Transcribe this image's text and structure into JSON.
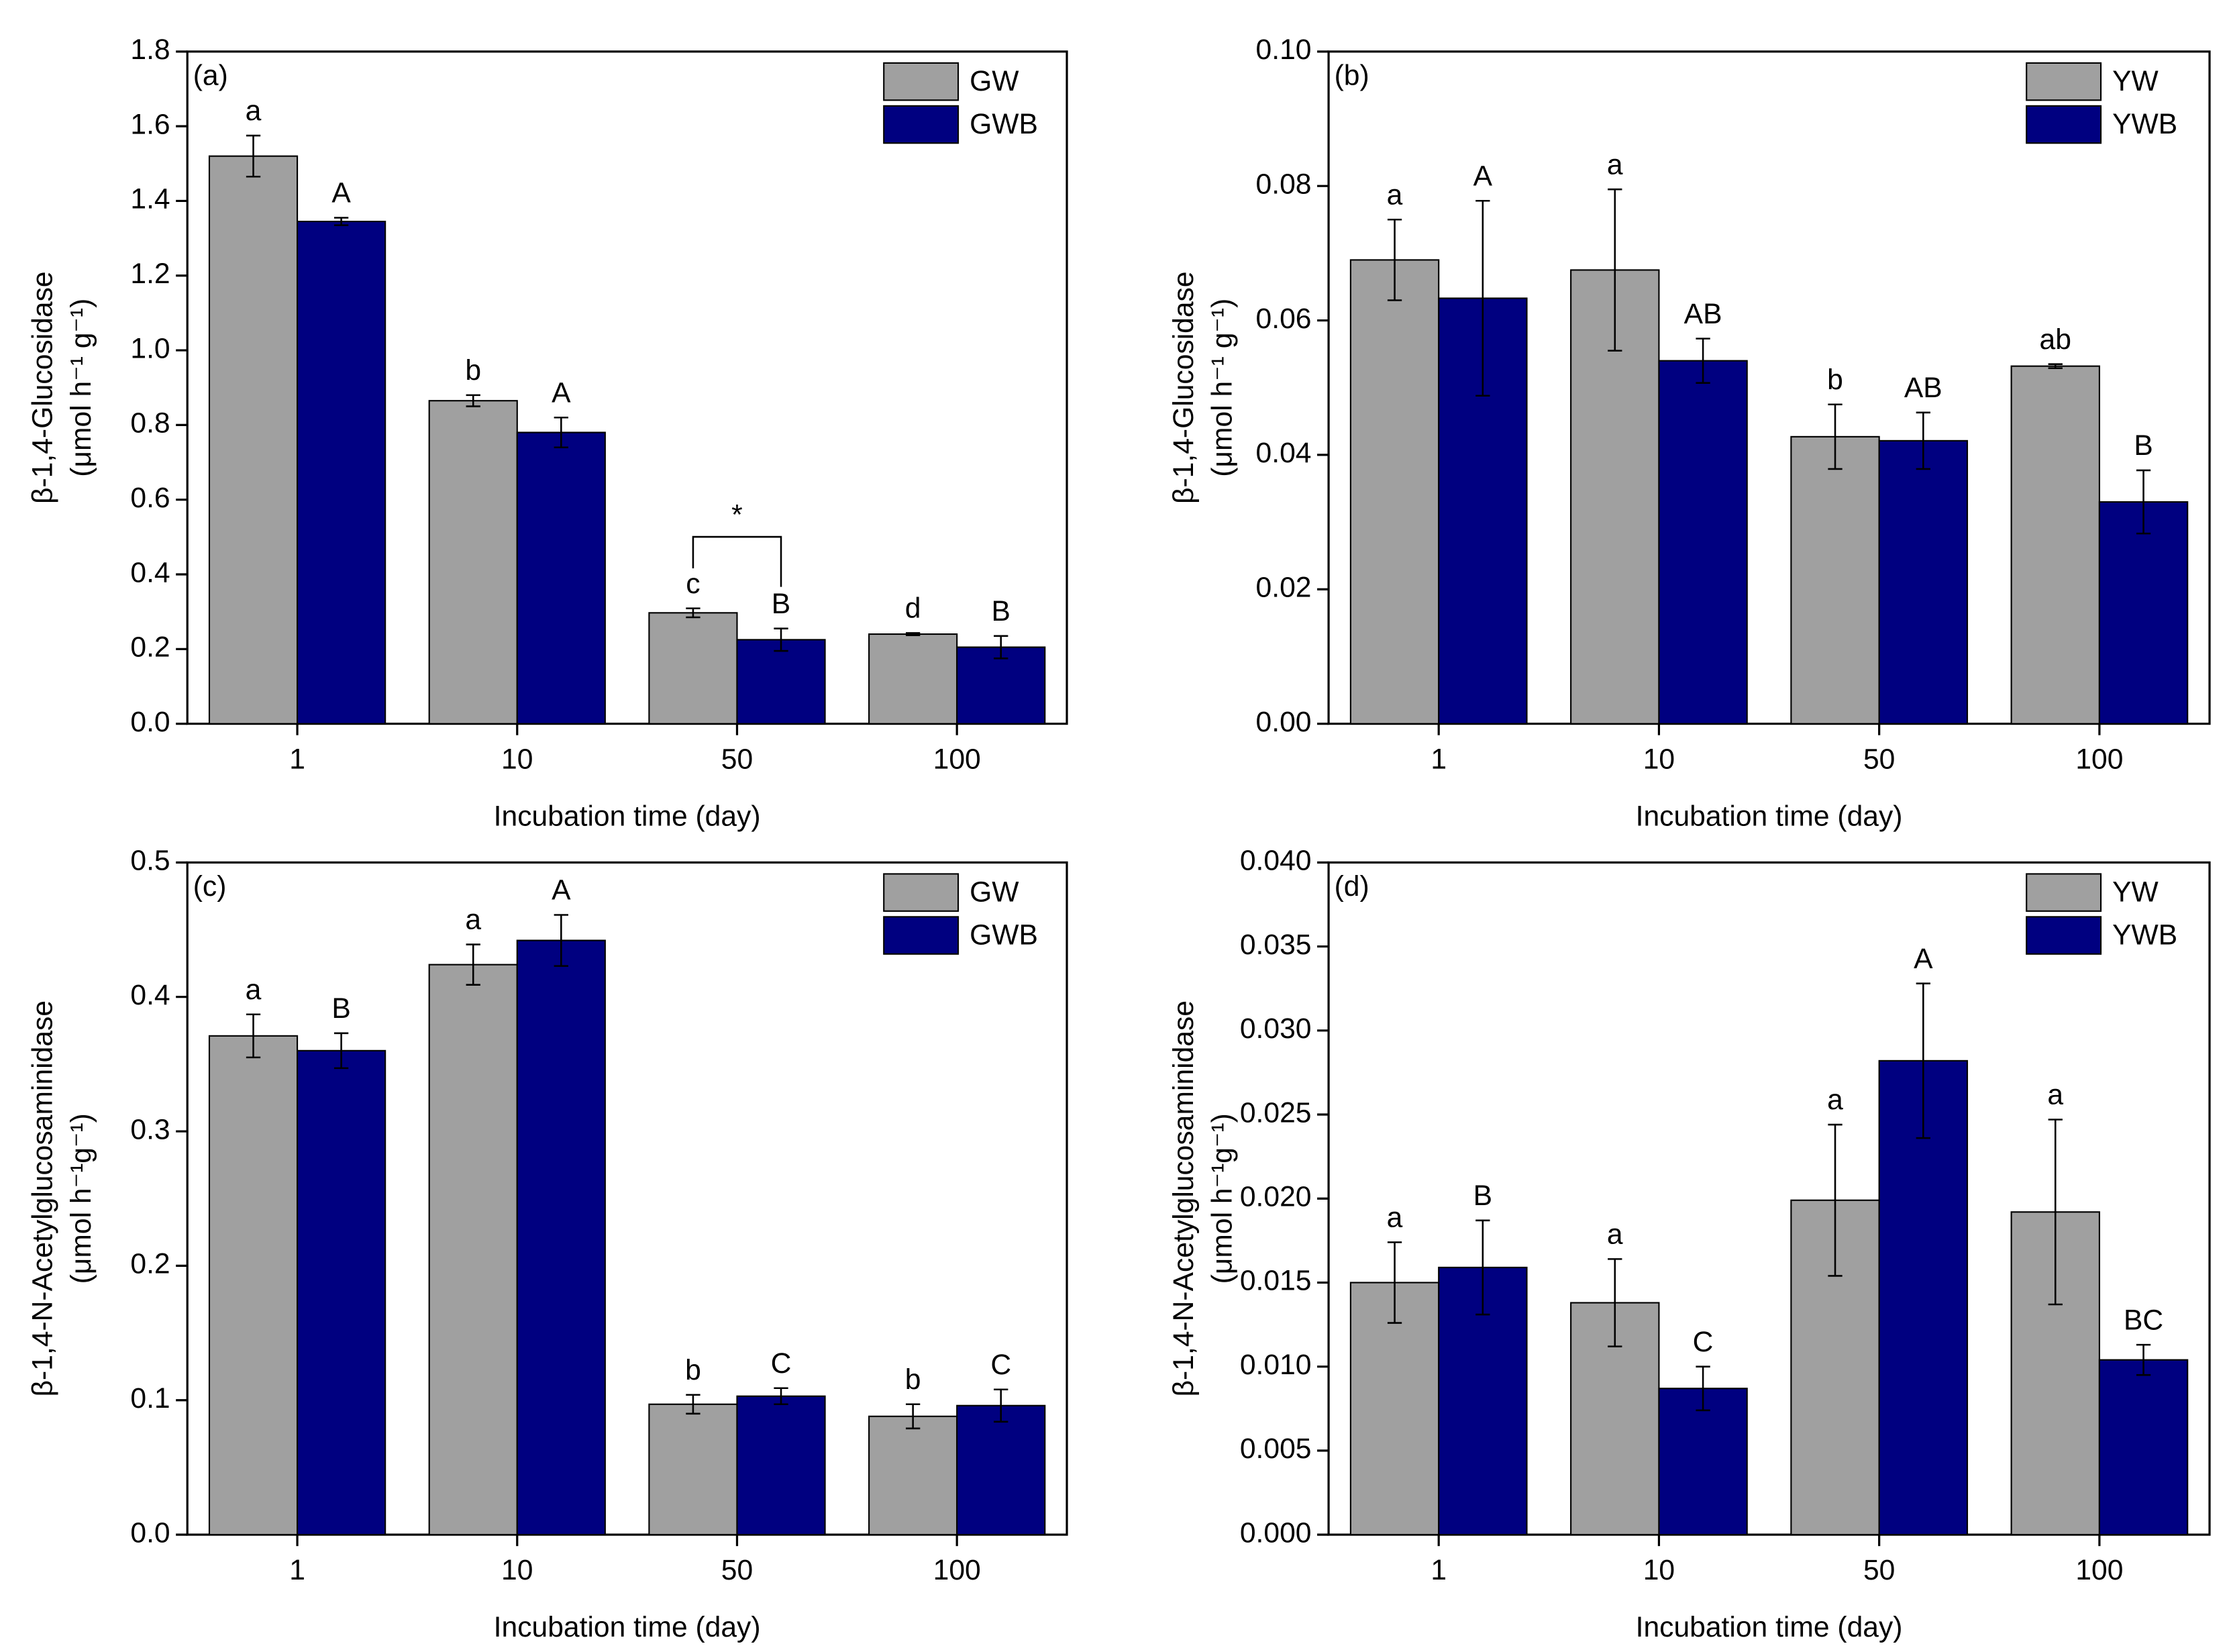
{
  "chart_data": [
    {
      "type": "bar",
      "title": "(a)",
      "ylabel": [
        "β-1,4-Glucosidase",
        "(μmol h⁻¹ g⁻¹)"
      ],
      "xlabel": "Incubation time (day)",
      "categories": [
        "1",
        "10",
        "50",
        "100"
      ],
      "series": [
        {
          "name": "GW",
          "color": "#a0a0a0",
          "values": [
            1.52,
            0.865,
            0.297,
            0.24
          ],
          "errors": [
            0.055,
            0.015,
            0.012,
            0.003
          ],
          "letters": [
            "a",
            "b",
            "c",
            "d"
          ]
        },
        {
          "name": "GWB",
          "color": "#000080",
          "values": [
            1.345,
            0.78,
            0.225,
            0.205
          ],
          "errors": [
            0.01,
            0.04,
            0.03,
            0.03
          ],
          "letters": [
            "A",
            "A",
            "B",
            "B"
          ]
        }
      ],
      "significance": {
        "text": "*",
        "category": "50"
      },
      "ylim": [
        0,
        1.8
      ],
      "yticks": [
        {
          "value": 0,
          "label": "0.0"
        },
        0.2,
        0.4,
        0.6,
        0.8,
        {
          "value": 1,
          "label": "1.0"
        },
        1.2,
        1.4,
        1.6,
        1.8
      ],
      "legend": "upper right"
    },
    {
      "type": "bar",
      "title": "(b)",
      "ylabel": [
        "β-1,4-Glucosidase",
        "(μmol h⁻¹ g⁻¹)"
      ],
      "xlabel": "Incubation time (day)",
      "categories": [
        "1",
        "10",
        "50",
        "100"
      ],
      "series": [
        {
          "name": "YW",
          "color": "#a0a0a0",
          "values": [
            0.069,
            0.0675,
            0.0427,
            0.0532
          ],
          "errors": [
            0.006,
            0.012,
            0.0048,
            0.0003
          ],
          "letters": [
            "a",
            "a",
            "b",
            "ab"
          ]
        },
        {
          "name": "YWB",
          "color": "#000080",
          "values": [
            0.0633,
            0.054,
            0.0421,
            0.033
          ],
          "errors": [
            0.0145,
            0.0033,
            0.0042,
            0.0047
          ],
          "letters": [
            "A",
            "AB",
            "AB",
            "B"
          ]
        }
      ],
      "ylim": [
        0,
        0.1
      ],
      "yticks": [
        {
          "value": 0,
          "label": "0.00"
        },
        0.02,
        0.04,
        0.06,
        0.08,
        {
          "value": 0.1,
          "label": "0.10"
        }
      ],
      "legend": "upper right"
    },
    {
      "type": "bar",
      "title": "(c)",
      "ylabel": [
        "β-1,4-N-Acetylglucosaminidase",
        "(μmol h⁻¹g⁻¹)"
      ],
      "xlabel": "Incubation time (day)",
      "categories": [
        "1",
        "10",
        "50",
        "100"
      ],
      "series": [
        {
          "name": "GW",
          "color": "#a0a0a0",
          "values": [
            0.371,
            0.424,
            0.097,
            0.088
          ],
          "errors": [
            0.016,
            0.015,
            0.007,
            0.009
          ],
          "letters": [
            "a",
            "a",
            "b",
            "b"
          ]
        },
        {
          "name": "GWB",
          "color": "#000080",
          "values": [
            0.36,
            0.442,
            0.103,
            0.096
          ],
          "errors": [
            0.013,
            0.019,
            0.006,
            0.012
          ],
          "letters": [
            "B",
            "A",
            "C",
            "C"
          ]
        }
      ],
      "ylim": [
        0,
        0.5
      ],
      "yticks": [
        {
          "value": 0,
          "label": "0.0"
        },
        0.1,
        0.2,
        0.3,
        0.4,
        0.5
      ],
      "legend": "upper right"
    },
    {
      "type": "bar",
      "title": "(d)",
      "ylabel": [
        "β-1,4-N-Acetylglucosaminidase",
        "(μmol h⁻¹g⁻¹)"
      ],
      "xlabel": "Incubation time (day)",
      "categories": [
        "1",
        "10",
        "50",
        "100"
      ],
      "series": [
        {
          "name": "YW",
          "color": "#a0a0a0",
          "values": [
            0.015,
            0.0138,
            0.0199,
            0.0192
          ],
          "errors": [
            0.0024,
            0.0026,
            0.0045,
            0.0055
          ],
          "letters": [
            "a",
            "a",
            "a",
            "a"
          ]
        },
        {
          "name": "YWB",
          "color": "#000080",
          "values": [
            0.0159,
            0.0087,
            0.0282,
            0.0104
          ],
          "errors": [
            0.0028,
            0.0013,
            0.0046,
            0.0009
          ],
          "letters": [
            "B",
            "C",
            "A",
            "BC"
          ]
        }
      ],
      "ylim": [
        0,
        0.04
      ],
      "yticks": [
        {
          "value": 0,
          "label": "0.000"
        },
        0.005,
        {
          "value": 0.01,
          "label": "0.010"
        },
        0.015,
        {
          "value": 0.02,
          "label": "0.020"
        },
        0.025,
        {
          "value": 0.03,
          "label": "0.030"
        },
        0.035,
        {
          "value": 0.04,
          "label": "0.040"
        }
      ],
      "legend": "upper right"
    }
  ]
}
